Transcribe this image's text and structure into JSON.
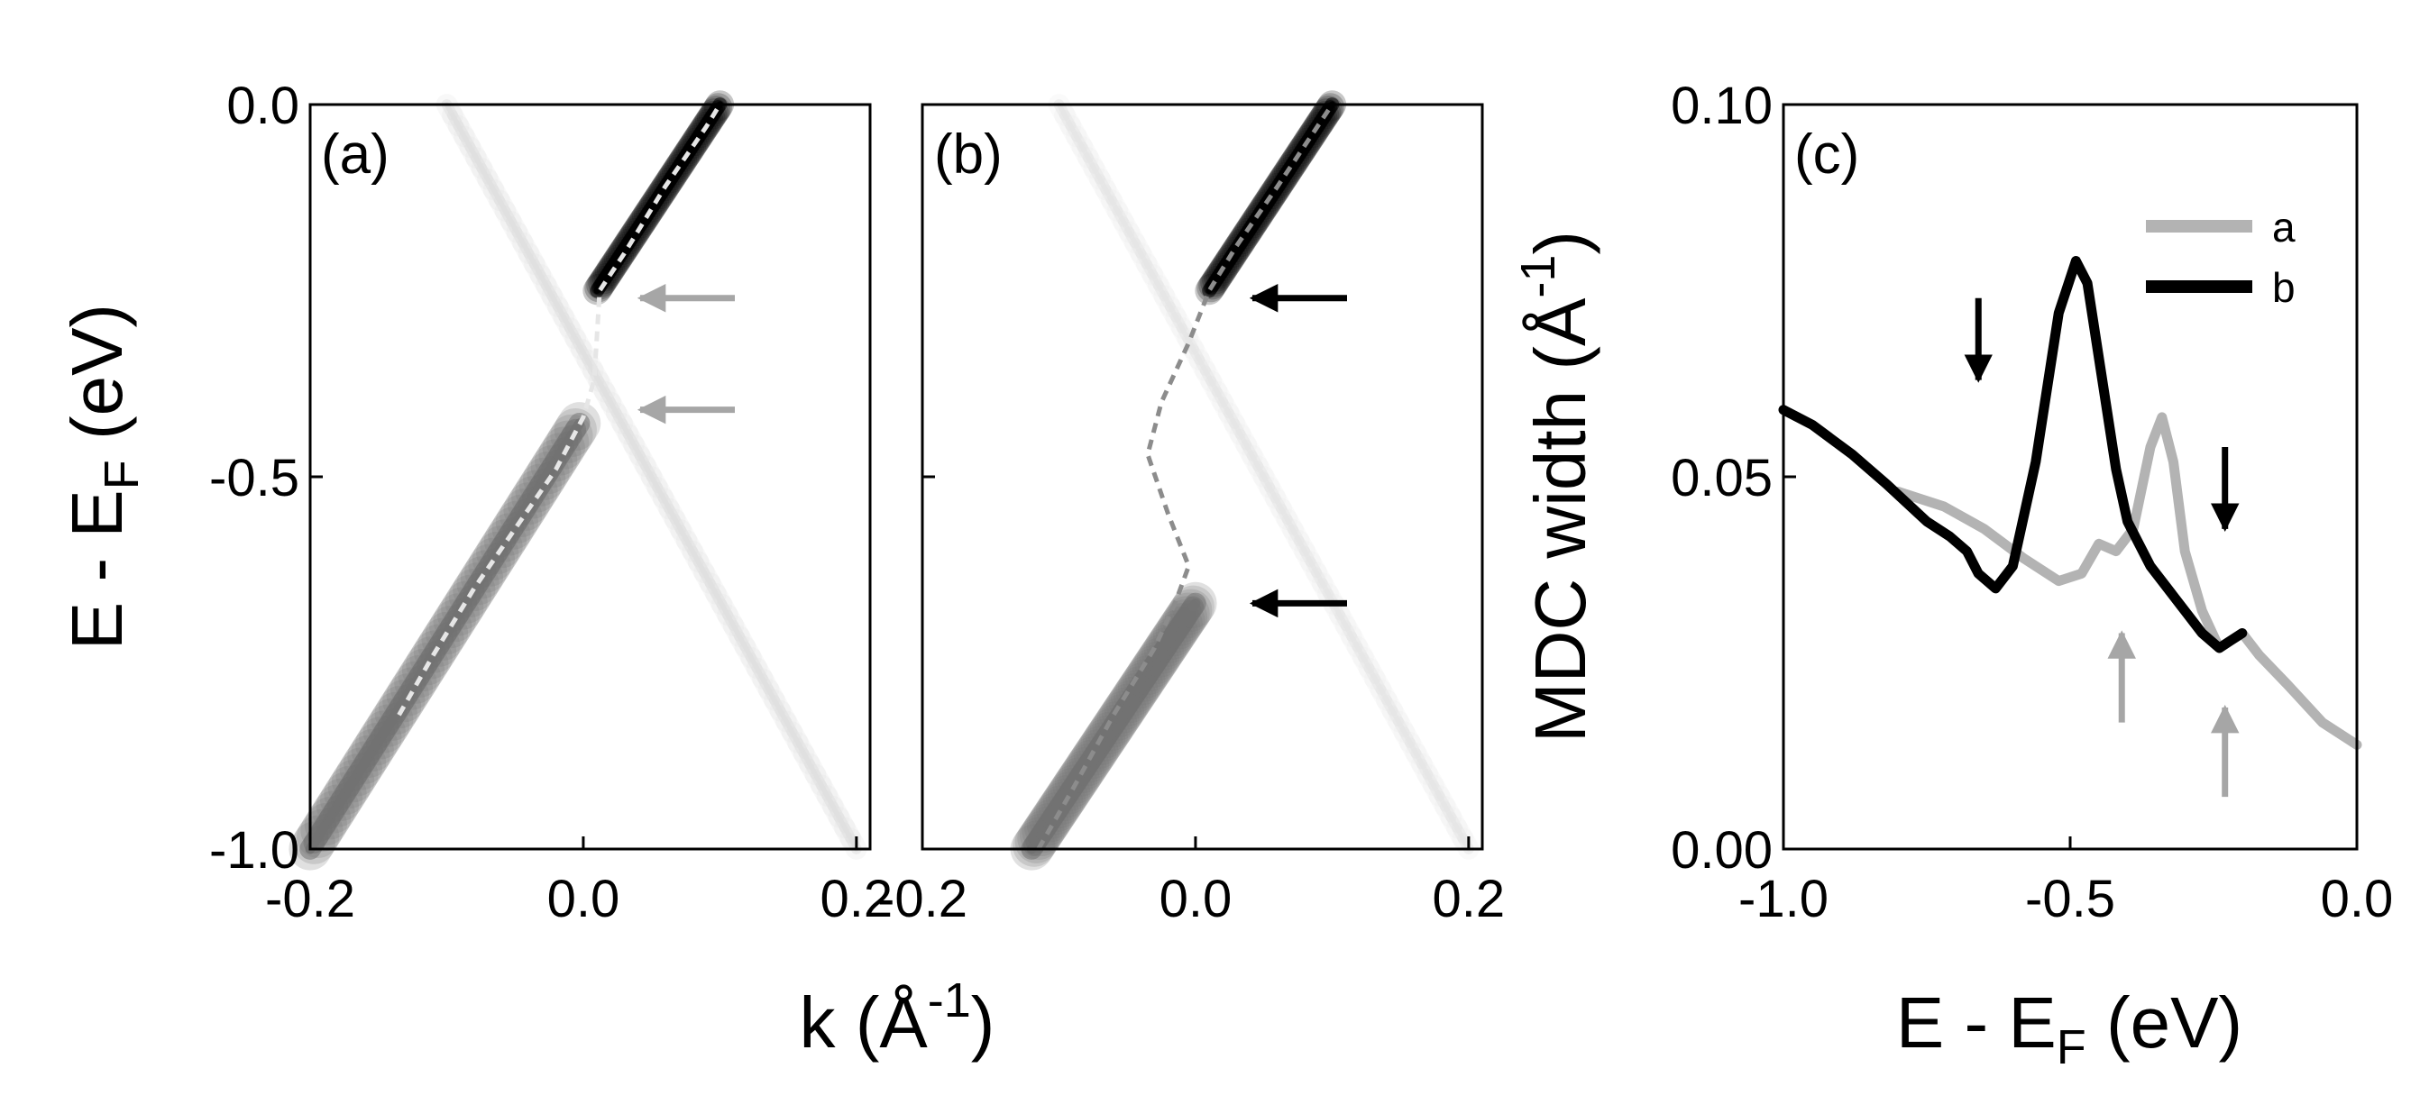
{
  "chart_data": [
    {
      "panel": "(a)",
      "type": "heatmap",
      "xlim": [
        -0.2,
        0.21
      ],
      "ylim": [
        -1.0,
        0.0
      ],
      "xticks": [
        -0.2,
        0.0,
        0.2
      ],
      "xtick_labels": [
        "-0.2",
        "0.0",
        "0.2"
      ],
      "yticks": [
        0.0,
        -0.5,
        -1.0
      ],
      "ytick_labels": [
        "0.0",
        "-0.5",
        "-1.0"
      ],
      "bands": [
        {
          "k": [
            -0.2,
            0.0,
            0.01
          ],
          "E": [
            -1.0,
            -0.42,
            -0.42
          ],
          "weight": 0.55,
          "width_k": 0.012
        },
        {
          "k": [
            0.01,
            0.1
          ],
          "E": [
            -0.25,
            0.0
          ],
          "weight": 1.0,
          "width_k": 0.008
        },
        {
          "k": [
            -0.1,
            0.2
          ],
          "E": [
            0.0,
            -1.0
          ],
          "weight": 0.12,
          "width_k": 0.006
        }
      ],
      "dispersion": {
        "k": [
          -0.135,
          -0.11,
          -0.08,
          -0.05,
          -0.02,
          0.0,
          0.008,
          0.01,
          0.012,
          0.03,
          0.06,
          0.09,
          0.1
        ],
        "E": [
          -0.82,
          -0.74,
          -0.65,
          -0.57,
          -0.49,
          -0.42,
          -0.37,
          -0.31,
          -0.25,
          -0.2,
          -0.11,
          -0.03,
          0.0
        ]
      },
      "arrows_E": [
        -0.26,
        -0.41
      ],
      "arrow_color": "#a6a6a6"
    },
    {
      "panel": "(b)",
      "type": "heatmap",
      "xlim": [
        -0.2,
        0.21
      ],
      "ylim": [
        -1.0,
        0.0
      ],
      "xticks": [
        -0.2,
        0.0,
        0.2
      ],
      "xtick_labels": [
        "-0.2",
        "0.0",
        "0.2"
      ],
      "yticks": [
        -0.5
      ],
      "bands": [
        {
          "k": [
            -0.12,
            0.0,
            0.01
          ],
          "E": [
            -1.0,
            -0.67,
            -0.67
          ],
          "weight": 0.55,
          "width_k": 0.012
        },
        {
          "k": [
            0.01,
            0.1
          ],
          "E": [
            -0.25,
            0.0
          ],
          "weight": 1.0,
          "width_k": 0.008
        },
        {
          "k": [
            -0.1,
            0.2
          ],
          "E": [
            0.0,
            -1.0
          ],
          "weight": 0.1,
          "width_k": 0.006
        }
      ],
      "dispersion": {
        "k": [
          -0.115,
          -0.09,
          -0.06,
          -0.03,
          -0.015,
          -0.005,
          -0.02,
          -0.035,
          -0.025,
          -0.005,
          0.01,
          0.03,
          0.06,
          0.1
        ],
        "E": [
          -1.0,
          -0.92,
          -0.82,
          -0.73,
          -0.67,
          -0.62,
          -0.55,
          -0.47,
          -0.4,
          -0.32,
          -0.25,
          -0.19,
          -0.11,
          0.0
        ]
      },
      "arrows_E": [
        -0.26,
        -0.67
      ],
      "arrow_color": "#000000"
    },
    {
      "panel": "(c)",
      "type": "line",
      "xlim": [
        -1.0,
        0.0
      ],
      "ylim": [
        0.0,
        0.1
      ],
      "xticks": [
        -1.0,
        -0.5,
        0.0
      ],
      "xtick_labels": [
        "-1.0",
        "-0.5",
        "0.0"
      ],
      "yticks": [
        0.0,
        0.05,
        0.1
      ],
      "ytick_labels": [
        "0.00",
        "0.05",
        "0.10"
      ],
      "series": [
        {
          "name": "a",
          "color": "#b3b3b3",
          "x": [
            -0.8,
            -0.72,
            -0.65,
            -0.58,
            -0.52,
            -0.48,
            -0.45,
            -0.42,
            -0.39,
            -0.36,
            -0.34,
            -0.32,
            -0.3,
            -0.27,
            -0.24,
            -0.22,
            -0.2,
            -0.17,
            -0.12,
            -0.06,
            0.0
          ],
          "y": [
            0.048,
            0.046,
            0.043,
            0.039,
            0.036,
            0.037,
            0.041,
            0.04,
            0.043,
            0.054,
            0.058,
            0.052,
            0.04,
            0.032,
            0.027,
            0.028,
            0.029,
            0.026,
            0.022,
            0.017,
            0.014
          ]
        },
        {
          "name": "b",
          "color": "#000000",
          "x": [
            -1.0,
            -0.95,
            -0.88,
            -0.82,
            -0.75,
            -0.71,
            -0.68,
            -0.66,
            -0.63,
            -0.6,
            -0.56,
            -0.52,
            -0.49,
            -0.47,
            -0.45,
            -0.42,
            -0.4,
            -0.36,
            -0.33,
            -0.3,
            -0.27,
            -0.24,
            -0.22,
            -0.2
          ],
          "y": [
            0.059,
            0.057,
            0.053,
            0.049,
            0.044,
            0.042,
            0.04,
            0.037,
            0.035,
            0.038,
            0.052,
            0.072,
            0.079,
            0.076,
            0.066,
            0.051,
            0.044,
            0.038,
            0.035,
            0.032,
            0.029,
            0.027,
            0.028,
            0.029
          ]
        }
      ],
      "black_arrows_x": [
        -0.66,
        -0.23
      ],
      "grey_arrows_x": [
        -0.41,
        -0.23
      ]
    }
  ],
  "texts": {
    "panel_a": "(a)",
    "panel_b": "(b)",
    "panel_c": "(c)",
    "y_left_main": "E - E",
    "y_left_sub": "F",
    "y_left_unit": " (eV)",
    "x_left_main": "k (Å",
    "x_left_sup": "-1",
    "x_left_close": ")",
    "y_right_main": "MDC width (Å",
    "y_right_sup": "-1",
    "y_right_close": ")",
    "x_right_main": "E - E",
    "x_right_sub": "F",
    "x_right_unit": " (eV)",
    "legend_a": "a",
    "legend_b": "b"
  }
}
